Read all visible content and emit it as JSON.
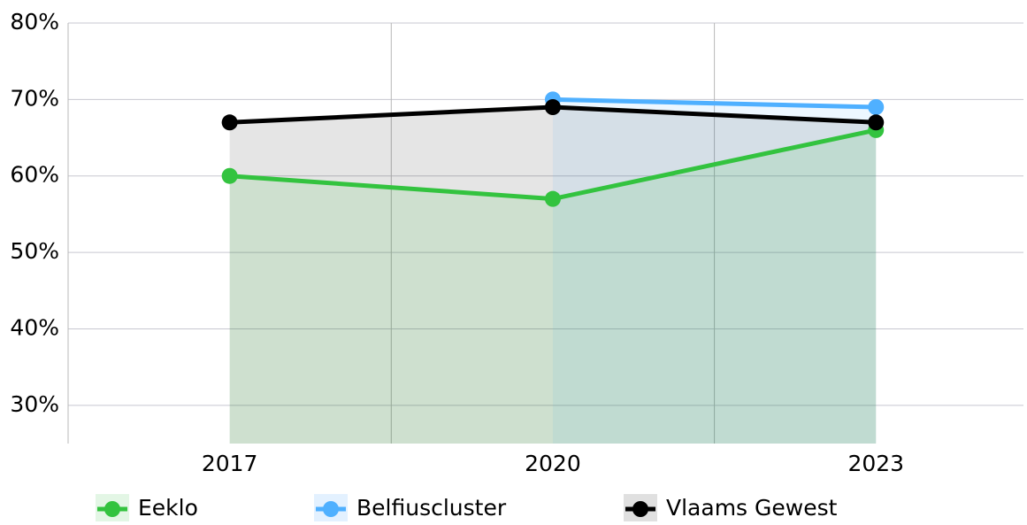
{
  "chart_data": {
    "type": "line",
    "categories": [
      "2017",
      "2020",
      "2023"
    ],
    "series": [
      {
        "name": "Eeklo",
        "color": "#33c33f",
        "values": [
          60,
          57,
          66
        ]
      },
      {
        "name": "Belfiuscluster",
        "color": "#4fb0ff",
        "values": [
          null,
          70,
          69
        ]
      },
      {
        "name": "Vlaams Gewest",
        "color": "#000000",
        "values": [
          67,
          69,
          67
        ]
      }
    ],
    "ylim": [
      25,
      80
    ],
    "yticks": [
      {
        "value": 30,
        "label": "30%"
      },
      {
        "value": 40,
        "label": "40%"
      },
      {
        "value": 50,
        "label": "50%"
      },
      {
        "value": 60,
        "label": "60%"
      },
      {
        "value": 70,
        "label": "70%"
      },
      {
        "value": 80,
        "label": "80%"
      }
    ],
    "grid": true,
    "area": true,
    "legend": "bottom"
  }
}
